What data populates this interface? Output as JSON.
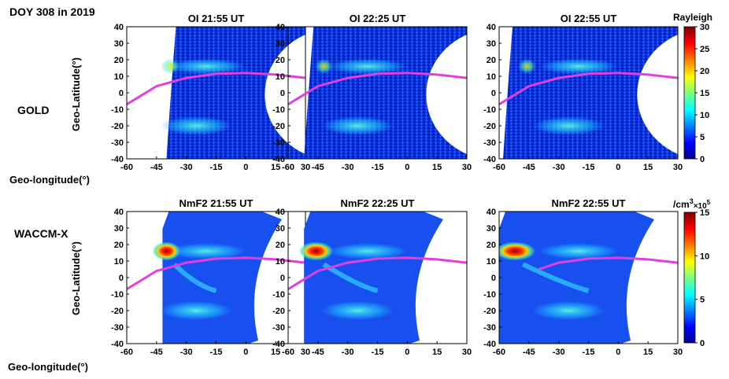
{
  "figure": {
    "heading": "DOY 308 in 2019",
    "row_labels": [
      "GOLD",
      "WACCM-X"
    ],
    "ylabel": "Geo-Latitude(°)",
    "xlabel": "Geo-longitude(°)"
  },
  "colorbars": [
    {
      "label": "Rayleigh",
      "ticks": [
        "0",
        "5",
        "10",
        "15",
        "20",
        "25",
        "30"
      ],
      "min": 0,
      "max": 30
    },
    {
      "label_main": "/cm",
      "label_sup": "3",
      "label_mult": "×10",
      "label_exp": "5",
      "ticks": [
        "0",
        "5",
        "10",
        "15"
      ],
      "min": 0,
      "max": 15
    }
  ],
  "colors": {
    "equator_line": "#e040e0"
  },
  "chart_data": [
    {
      "type": "heatmap",
      "title": "OI 21:55 UT",
      "xlabel": "",
      "ylabel": "",
      "xlim": [
        -60,
        30
      ],
      "ylim": [
        -40,
        40
      ],
      "xticks": [
        "-60",
        "-45",
        "-30",
        "-15",
        "0",
        "15",
        "30"
      ],
      "yticks": [
        "40",
        "30",
        "20",
        "10",
        "0",
        "-10",
        "-20",
        "-30",
        "-40"
      ],
      "magnetic_equator": [
        [
          -60,
          -7
        ],
        [
          -45,
          4
        ],
        [
          -30,
          9
        ],
        [
          -15,
          11.5
        ],
        [
          0,
          12
        ],
        [
          15,
          11
        ],
        [
          30,
          9
        ]
      ]
    },
    {
      "type": "heatmap",
      "title": "OI 22:25 UT",
      "xlabel": "",
      "ylabel": "",
      "xlim": [
        -60,
        30
      ],
      "ylim": [
        -40,
        40
      ],
      "xticks": [
        "-60",
        "-45",
        "-30",
        "-15",
        "0",
        "15",
        "30"
      ],
      "yticks": [
        "40",
        "30",
        "20",
        "10",
        "0",
        "-10",
        "-20",
        "-30",
        "-40"
      ],
      "magnetic_equator": [
        [
          -60,
          -7
        ],
        [
          -45,
          4
        ],
        [
          -30,
          9
        ],
        [
          -15,
          11.5
        ],
        [
          0,
          12
        ],
        [
          15,
          11
        ],
        [
          30,
          9
        ]
      ]
    },
    {
      "type": "heatmap",
      "title": "OI 22:55 UT",
      "xlabel": "",
      "ylabel": "",
      "xlim": [
        -60,
        30
      ],
      "ylim": [
        -40,
        40
      ],
      "xticks": [
        "-60",
        "-45",
        "-30",
        "-15",
        "0",
        "15",
        "30"
      ],
      "yticks": [
        "40",
        "30",
        "20",
        "10",
        "0",
        "-10",
        "-20",
        "-30",
        "-40"
      ],
      "magnetic_equator": [
        [
          -60,
          -7
        ],
        [
          -45,
          4
        ],
        [
          -30,
          9
        ],
        [
          -15,
          11.5
        ],
        [
          0,
          12
        ],
        [
          15,
          11
        ],
        [
          30,
          9
        ]
      ]
    },
    {
      "type": "heatmap",
      "title": "NmF2 21:55 UT",
      "xlabel": "",
      "ylabel": "",
      "xlim": [
        -60,
        30
      ],
      "ylim": [
        -40,
        40
      ],
      "xticks": [
        "-60",
        "-45",
        "-30",
        "-15",
        "0",
        "15",
        "30"
      ],
      "yticks": [
        "40",
        "30",
        "20",
        "10",
        "0",
        "-10",
        "-20",
        "-30",
        "-40"
      ],
      "magnetic_equator": [
        [
          -60,
          -7
        ],
        [
          -45,
          4
        ],
        [
          -30,
          9
        ],
        [
          -15,
          11.5
        ],
        [
          0,
          12
        ],
        [
          15,
          11
        ],
        [
          30,
          9
        ]
      ]
    },
    {
      "type": "heatmap",
      "title": "NmF2 22:25 UT",
      "xlabel": "",
      "ylabel": "",
      "xlim": [
        -60,
        30
      ],
      "ylim": [
        -40,
        40
      ],
      "xticks": [
        "-60",
        "-45",
        "-30",
        "-15",
        "0",
        "15",
        "30"
      ],
      "yticks": [
        "40",
        "30",
        "20",
        "10",
        "0",
        "-10",
        "-20",
        "-30",
        "-40"
      ],
      "magnetic_equator": [
        [
          -60,
          -7
        ],
        [
          -45,
          4
        ],
        [
          -30,
          9
        ],
        [
          -15,
          11.5
        ],
        [
          0,
          12
        ],
        [
          15,
          11
        ],
        [
          30,
          9
        ]
      ]
    },
    {
      "type": "heatmap",
      "title": "NmF2 22:55 UT",
      "xlabel": "",
      "ylabel": "",
      "xlim": [
        -60,
        30
      ],
      "ylim": [
        -40,
        40
      ],
      "xticks": [
        "-60",
        "-45",
        "-30",
        "-15",
        "0",
        "15",
        "30"
      ],
      "yticks": [
        "40",
        "30",
        "20",
        "10",
        "0",
        "-10",
        "-20",
        "-30",
        "-40"
      ],
      "magnetic_equator": [
        [
          -40,
          5
        ],
        [
          -30,
          9
        ],
        [
          -15,
          11.5
        ],
        [
          0,
          12
        ],
        [
          15,
          11
        ],
        [
          30,
          9
        ]
      ]
    }
  ]
}
